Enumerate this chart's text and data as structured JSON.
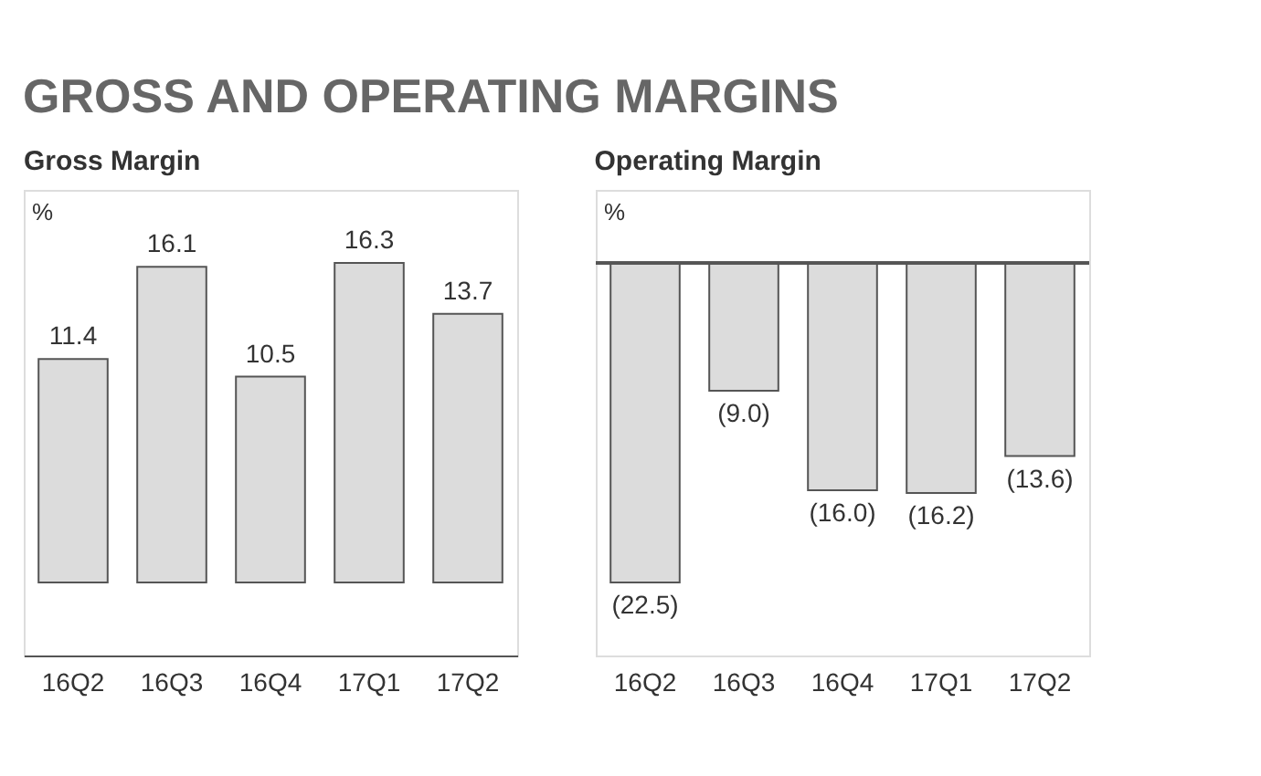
{
  "chart_data": [
    {
      "type": "bar",
      "title": "Gross Margin",
      "ylabel": "%",
      "annotations": [
        "GROSS AND OPERATING MARGINS"
      ],
      "categories": [
        "16Q2",
        "16Q3",
        "16Q4",
        "17Q1",
        "17Q2"
      ],
      "values": [
        11.4,
        16.1,
        10.5,
        16.3,
        13.7
      ],
      "color": "#dcdcdc",
      "data_labels": true,
      "grid": false
    },
    {
      "type": "bar",
      "title": "Operating Margin",
      "ylabel": "%",
      "categories": [
        "16Q2",
        "16Q3",
        "16Q4",
        "17Q1",
        "17Q2"
      ],
      "values": [
        -22.5,
        -9.0,
        -16.0,
        -16.2,
        -13.6
      ],
      "color": "#dcdcdc",
      "value_labels": [
        "(22.5)",
        "(9.0)",
        "(16.0)",
        "(16.2)",
        "(13.6)"
      ],
      "grid": false
    }
  ]
}
